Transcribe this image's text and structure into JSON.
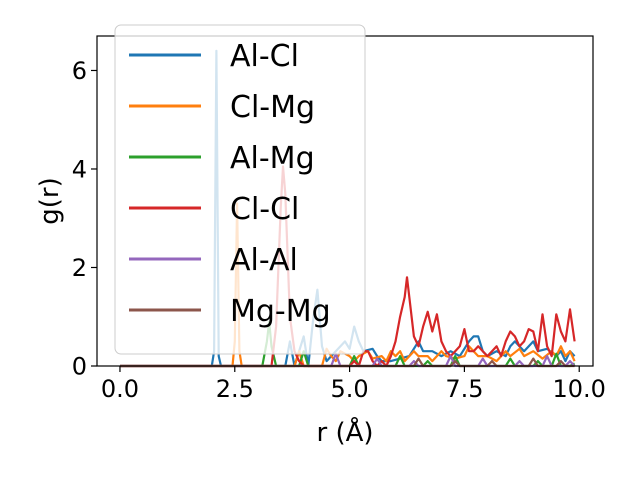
{
  "chart_data": {
    "type": "line",
    "xlabel": "r (Å)",
    "ylabel": "g(r)",
    "xlim": [
      -0.5,
      10.3
    ],
    "ylim": [
      0,
      6.7
    ],
    "xticks": [
      0.0,
      2.5,
      5.0,
      7.5,
      10.0
    ],
    "xtick_labels": [
      "0.0",
      "2.5",
      "5.0",
      "7.5",
      "10.0"
    ],
    "yticks": [
      0,
      2,
      4,
      6
    ],
    "ytick_labels": [
      "0",
      "2",
      "4",
      "6"
    ],
    "grid": false,
    "legend_position": "upper-left",
    "series": [
      {
        "name": "Al-Cl",
        "color": "#1f77b4",
        "points": [
          [
            0,
            0
          ],
          [
            2.0,
            0
          ],
          [
            2.05,
            0.3
          ],
          [
            2.1,
            6.4
          ],
          [
            2.15,
            0.2
          ],
          [
            2.2,
            0
          ],
          [
            3.6,
            0
          ],
          [
            3.7,
            0.5
          ],
          [
            3.8,
            0
          ],
          [
            4.0,
            0.6
          ],
          [
            4.1,
            0
          ],
          [
            4.2,
            0.9
          ],
          [
            4.3,
            1.55
          ],
          [
            4.4,
            0.4
          ],
          [
            4.5,
            0.1
          ],
          [
            4.7,
            0.3
          ],
          [
            4.9,
            0.5
          ],
          [
            5.0,
            0.35
          ],
          [
            5.1,
            0.8
          ],
          [
            5.2,
            0.5
          ],
          [
            5.3,
            0.3
          ],
          [
            5.5,
            0.35
          ],
          [
            5.6,
            0.2
          ],
          [
            5.7,
            0.1
          ],
          [
            5.9,
            0.1
          ],
          [
            6.1,
            0.15
          ],
          [
            6.3,
            0.2
          ],
          [
            6.5,
            0.5
          ],
          [
            6.6,
            0.3
          ],
          [
            6.8,
            0.3
          ],
          [
            7.0,
            0.2
          ],
          [
            7.2,
            0.3
          ],
          [
            7.4,
            0.2
          ],
          [
            7.5,
            0.35
          ],
          [
            7.6,
            0.5
          ],
          [
            7.7,
            0.6
          ],
          [
            7.8,
            0.6
          ],
          [
            7.9,
            0.3
          ],
          [
            8.0,
            0.2
          ],
          [
            8.2,
            0.3
          ],
          [
            8.4,
            0.2
          ],
          [
            8.5,
            0.4
          ],
          [
            8.6,
            0.5
          ],
          [
            8.8,
            0.3
          ],
          [
            9.0,
            0.5
          ],
          [
            9.1,
            0.3
          ],
          [
            9.3,
            0.35
          ],
          [
            9.5,
            0.2
          ],
          [
            9.6,
            0.3
          ],
          [
            9.7,
            0.1
          ],
          [
            9.8,
            0.3
          ],
          [
            9.9,
            0.2
          ]
        ]
      },
      {
        "name": "Cl-Mg",
        "color": "#ff7f0e",
        "points": [
          [
            0,
            0
          ],
          [
            2.45,
            0
          ],
          [
            2.5,
            0.5
          ],
          [
            2.55,
            3.3
          ],
          [
            2.6,
            0.3
          ],
          [
            2.65,
            0
          ],
          [
            3.8,
            0
          ],
          [
            3.9,
            0.3
          ],
          [
            4.0,
            0
          ],
          [
            4.4,
            0
          ],
          [
            4.5,
            0.35
          ],
          [
            4.6,
            0.2
          ],
          [
            4.7,
            0.1
          ],
          [
            4.8,
            0.3
          ],
          [
            4.9,
            0.25
          ],
          [
            5.0,
            0.2
          ],
          [
            5.1,
            0.1
          ],
          [
            5.2,
            0.2
          ],
          [
            5.4,
            0.3
          ],
          [
            5.5,
            0.15
          ],
          [
            5.7,
            0.2
          ],
          [
            5.8,
            0.1
          ],
          [
            5.9,
            0.3
          ],
          [
            6.0,
            0.2
          ],
          [
            6.1,
            0.3
          ],
          [
            6.2,
            0.1
          ],
          [
            6.4,
            0.3
          ],
          [
            6.5,
            0.2
          ],
          [
            6.7,
            0.2
          ],
          [
            6.8,
            0.1
          ],
          [
            7.0,
            0.3
          ],
          [
            7.1,
            0.2
          ],
          [
            7.3,
            0.15
          ],
          [
            7.5,
            0.2
          ],
          [
            7.6,
            0.4
          ],
          [
            7.7,
            0.3
          ],
          [
            7.8,
            0.2
          ],
          [
            8.0,
            0.2
          ],
          [
            8.2,
            0.1
          ],
          [
            8.4,
            0.3
          ],
          [
            8.5,
            0.2
          ],
          [
            8.7,
            0.35
          ],
          [
            8.8,
            0.2
          ],
          [
            9.0,
            0.3
          ],
          [
            9.2,
            0.15
          ],
          [
            9.4,
            0.3
          ],
          [
            9.5,
            0.2
          ],
          [
            9.6,
            0.4
          ],
          [
            9.7,
            0.2
          ],
          [
            9.8,
            0.3
          ],
          [
            9.9,
            0.1
          ]
        ]
      },
      {
        "name": "Al-Mg",
        "color": "#2ca02c",
        "points": [
          [
            0,
            0
          ],
          [
            3.1,
            0
          ],
          [
            3.2,
            0.5
          ],
          [
            3.25,
            0.9
          ],
          [
            3.3,
            0.4
          ],
          [
            3.4,
            0
          ],
          [
            3.9,
            0
          ],
          [
            4.0,
            0.3
          ],
          [
            4.1,
            0
          ],
          [
            5.0,
            0
          ],
          [
            5.1,
            0.2
          ],
          [
            5.2,
            0
          ],
          [
            6.0,
            0
          ],
          [
            6.1,
            0.2
          ],
          [
            6.2,
            0
          ],
          [
            6.6,
            0
          ],
          [
            6.7,
            0.1
          ],
          [
            6.8,
            0
          ],
          [
            7.2,
            0
          ],
          [
            7.3,
            0.2
          ],
          [
            7.4,
            0
          ],
          [
            8.4,
            0
          ],
          [
            8.5,
            0.15
          ],
          [
            8.6,
            0
          ],
          [
            9.0,
            0
          ],
          [
            9.1,
            0.1
          ],
          [
            9.2,
            0
          ],
          [
            9.4,
            0
          ],
          [
            9.5,
            0.25
          ],
          [
            9.6,
            0
          ],
          [
            9.8,
            0
          ],
          [
            9.9,
            0.05
          ]
        ]
      },
      {
        "name": "Cl-Cl",
        "color": "#d62728",
        "points": [
          [
            0,
            0
          ],
          [
            3.3,
            0
          ],
          [
            3.4,
            0.8
          ],
          [
            3.5,
            3.2
          ],
          [
            3.55,
            4.05
          ],
          [
            3.6,
            3.5
          ],
          [
            3.7,
            1.0
          ],
          [
            3.8,
            0.3
          ],
          [
            3.9,
            0.1
          ],
          [
            4.0,
            0
          ],
          [
            5.0,
            0
          ],
          [
            5.1,
            0.1
          ],
          [
            5.2,
            0
          ],
          [
            5.3,
            0.3
          ],
          [
            5.4,
            0.3
          ],
          [
            5.5,
            0.1
          ],
          [
            5.6,
            0
          ],
          [
            5.7,
            0.1
          ],
          [
            5.8,
            0
          ],
          [
            5.9,
            0.2
          ],
          [
            6.0,
            0.5
          ],
          [
            6.1,
            1.0
          ],
          [
            6.2,
            1.4
          ],
          [
            6.25,
            1.8
          ],
          [
            6.3,
            1.4
          ],
          [
            6.4,
            0.6
          ],
          [
            6.5,
            0.4
          ],
          [
            6.6,
            0.8
          ],
          [
            6.7,
            1.1
          ],
          [
            6.8,
            0.7
          ],
          [
            6.9,
            1.05
          ],
          [
            7.0,
            0.5
          ],
          [
            7.1,
            0.3
          ],
          [
            7.2,
            0.2
          ],
          [
            7.3,
            0.3
          ],
          [
            7.4,
            0.4
          ],
          [
            7.5,
            0.75
          ],
          [
            7.6,
            0.3
          ],
          [
            7.7,
            0.3
          ],
          [
            7.8,
            0.4
          ],
          [
            7.9,
            0.3
          ],
          [
            8.0,
            0.2
          ],
          [
            8.1,
            0.3
          ],
          [
            8.2,
            0.4
          ],
          [
            8.3,
            0.2
          ],
          [
            8.4,
            0.5
          ],
          [
            8.5,
            0.7
          ],
          [
            8.6,
            0.6
          ],
          [
            8.7,
            0.4
          ],
          [
            8.8,
            0.5
          ],
          [
            8.9,
            0.75
          ],
          [
            9.0,
            0.7
          ],
          [
            9.1,
            0.3
          ],
          [
            9.2,
            1.05
          ],
          [
            9.3,
            0.4
          ],
          [
            9.4,
            0.2
          ],
          [
            9.5,
            1.05
          ],
          [
            9.6,
            0.7
          ],
          [
            9.7,
            0.5
          ],
          [
            9.8,
            1.15
          ],
          [
            9.9,
            0.5
          ]
        ]
      },
      {
        "name": "Al-Al",
        "color": "#9467bd",
        "points": [
          [
            0,
            0
          ],
          [
            4.6,
            0
          ],
          [
            4.7,
            0.25
          ],
          [
            4.8,
            0
          ],
          [
            5.5,
            0
          ],
          [
            5.6,
            0.15
          ],
          [
            5.7,
            0
          ],
          [
            6.3,
            0
          ],
          [
            6.4,
            0.1
          ],
          [
            6.5,
            0
          ],
          [
            7.1,
            0
          ],
          [
            7.2,
            0.2
          ],
          [
            7.3,
            0
          ],
          [
            7.8,
            0
          ],
          [
            7.9,
            0.15
          ],
          [
            8.0,
            0
          ],
          [
            8.6,
            0
          ],
          [
            8.7,
            0.1
          ],
          [
            8.8,
            0
          ],
          [
            9.2,
            0
          ],
          [
            9.3,
            0.2
          ],
          [
            9.4,
            0
          ],
          [
            9.7,
            0
          ],
          [
            9.8,
            0.1
          ],
          [
            9.9,
            0
          ]
        ]
      },
      {
        "name": "Mg-Mg",
        "color": "#8c564b",
        "points": [
          [
            0,
            0
          ],
          [
            6.4,
            0
          ],
          [
            6.5,
            0.15
          ],
          [
            6.6,
            0
          ],
          [
            7.2,
            0
          ],
          [
            7.3,
            0.1
          ],
          [
            7.4,
            0
          ],
          [
            8.0,
            0
          ],
          [
            8.1,
            0.1
          ],
          [
            8.2,
            0
          ],
          [
            8.9,
            0
          ],
          [
            9.0,
            0.15
          ],
          [
            9.1,
            0
          ],
          [
            9.5,
            0
          ],
          [
            9.6,
            0.1
          ],
          [
            9.7,
            0
          ],
          [
            9.9,
            0
          ]
        ]
      }
    ]
  }
}
